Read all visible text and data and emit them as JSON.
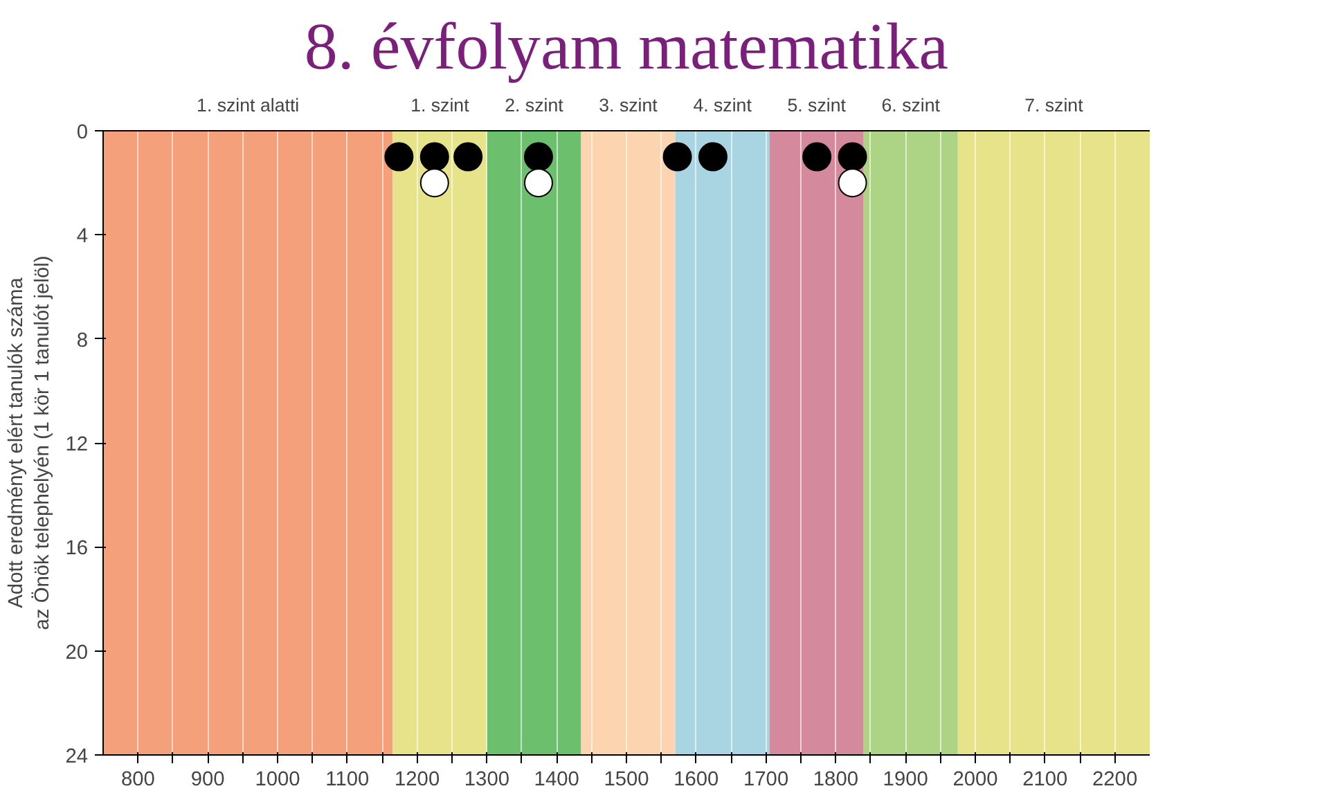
{
  "chart_data": {
    "type": "scatter",
    "title": "8. évfolyam matematika",
    "ylabel": "Adott eredményt elért tanulók száma\naz Önök telephelyén (1 kör 1 tanulót jelöl)",
    "xlim": [
      750,
      2250
    ],
    "ylim": [
      24,
      0
    ],
    "xticks": [
      800,
      {
        "value": 850,
        "label": null
      },
      900,
      {
        "value": 950,
        "label": null
      },
      1000,
      {
        "value": 1050,
        "label": null
      },
      1100,
      {
        "value": 1150,
        "label": null
      },
      1200,
      {
        "value": 1250,
        "label": null
      },
      1300,
      {
        "value": 1350,
        "label": null
      },
      1400,
      {
        "value": 1450,
        "label": null
      },
      1500,
      {
        "value": 1550,
        "label": null
      },
      1600,
      {
        "value": 1650,
        "label": null
      },
      1700,
      {
        "value": 1750,
        "label": null
      },
      1800,
      {
        "value": 1850,
        "label": null
      },
      1900,
      {
        "value": 1950,
        "label": null
      },
      2000,
      {
        "value": 2050,
        "label": null
      },
      2100,
      {
        "value": 2150,
        "label": null
      },
      2200
    ],
    "yticks": [
      0,
      4,
      8,
      12,
      16,
      20,
      24
    ],
    "grid": "x",
    "marker": "circle",
    "bands": [
      {
        "axis": "x",
        "from": 750,
        "to": 1165,
        "label": "1. szint alatti",
        "color": "#f4a07a"
      },
      {
        "axis": "x",
        "from": 1165,
        "to": 1300,
        "label": "1. szint",
        "color": "#e6e38a"
      },
      {
        "axis": "x",
        "from": 1300,
        "to": 1435,
        "label": "2. szint",
        "color": "#6cbf6c"
      },
      {
        "axis": "x",
        "from": 1435,
        "to": 1570,
        "label": "3. szint",
        "color": "#fcd5b0"
      },
      {
        "axis": "x",
        "from": 1570,
        "to": 1705,
        "label": "4. szint",
        "color": "#a9d4e2"
      },
      {
        "axis": "x",
        "from": 1705,
        "to": 1840,
        "label": "5. szint",
        "color": "#d48a9c"
      },
      {
        "axis": "x",
        "from": 1840,
        "to": 1975,
        "label": "6. szint",
        "color": "#acd484"
      },
      {
        "axis": "x",
        "from": 1975,
        "to": 2250,
        "label": "7. szint",
        "color": "#e6e38a"
      }
    ],
    "series": [
      {
        "color": "#000000",
        "x": [
          1174,
          1225,
          1273,
          1374,
          1573,
          1624,
          1773,
          1824
        ],
        "values": [
          1,
          1,
          1,
          1,
          1,
          1,
          1,
          1
        ]
      },
      {
        "color": "#ffffff",
        "x": [
          1225,
          1374,
          1824
        ],
        "values": [
          2,
          2,
          2
        ]
      }
    ]
  }
}
